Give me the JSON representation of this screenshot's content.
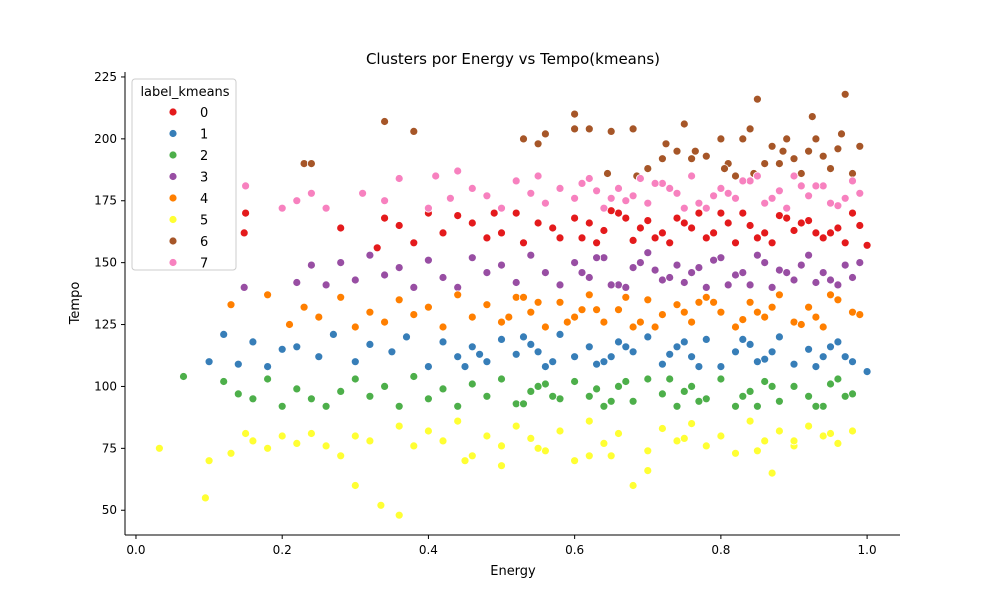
{
  "chart_data": {
    "type": "scatter",
    "title": "Clusters por Energy vs Tempo(kmeans)",
    "xlabel": "Energy",
    "ylabel": "Tempo",
    "xlim": [
      -0.015,
      1.045
    ],
    "ylim": [
      40,
      227
    ],
    "xticks": [
      0.0,
      0.2,
      0.4,
      0.6,
      0.8,
      1.0
    ],
    "xtick_labels": [
      "0.0",
      "0.2",
      "0.4",
      "0.6",
      "0.8",
      "1.0"
    ],
    "yticks": [
      50,
      75,
      100,
      125,
      150,
      175,
      200,
      225
    ],
    "ytick_labels": [
      "50",
      "75",
      "100",
      "125",
      "150",
      "175",
      "200",
      "225"
    ],
    "grid": false,
    "legend": {
      "title": "label_kmeans",
      "placement": "top-left",
      "entries": [
        "0",
        "1",
        "2",
        "3",
        "4",
        "5",
        "6",
        "7"
      ]
    },
    "series": [
      {
        "name": "0",
        "color": "#e41a1c",
        "x": [
          0.15,
          0.148,
          0.28,
          0.34,
          0.33,
          0.36,
          0.38,
          0.4,
          0.42,
          0.44,
          0.46,
          0.48,
          0.5,
          0.52,
          0.55,
          0.58,
          0.6,
          0.62,
          0.64,
          0.66,
          0.68,
          0.7,
          0.72,
          0.74,
          0.76,
          0.78,
          0.8,
          0.82,
          0.84,
          0.86,
          0.88,
          0.9,
          0.92,
          0.94,
          0.96,
          0.98,
          1.0,
          0.63,
          0.67,
          0.71,
          0.75,
          0.79,
          0.83,
          0.87,
          0.91,
          0.95,
          0.99,
          0.65,
          0.69,
          0.73,
          0.77,
          0.81,
          0.85,
          0.89,
          0.93,
          0.97,
          0.61,
          0.57,
          0.53,
          0.49
        ],
        "y": [
          170,
          162,
          164,
          168,
          156,
          165,
          158,
          170,
          162,
          169,
          166,
          160,
          162,
          170,
          166,
          160,
          168,
          166,
          163,
          170,
          159,
          167,
          162,
          168,
          164,
          160,
          170,
          158,
          165,
          162,
          169,
          163,
          167,
          160,
          164,
          170,
          157,
          158,
          168,
          160,
          166,
          162,
          170,
          158,
          166,
          162,
          165,
          171,
          164,
          158,
          170,
          166,
          160,
          168,
          162,
          158,
          160,
          164,
          158,
          170
        ]
      },
      {
        "name": "1",
        "color": "#377eb8",
        "x": [
          0.1,
          0.12,
          0.14,
          0.16,
          0.18,
          0.2,
          0.22,
          0.25,
          0.27,
          0.3,
          0.32,
          0.35,
          0.37,
          0.4,
          0.42,
          0.44,
          0.46,
          0.48,
          0.5,
          0.52,
          0.54,
          0.56,
          0.58,
          0.6,
          0.62,
          0.64,
          0.66,
          0.68,
          0.7,
          0.72,
          0.74,
          0.76,
          0.78,
          0.8,
          0.82,
          0.84,
          0.86,
          0.88,
          0.9,
          0.92,
          0.94,
          0.96,
          0.98,
          1.0,
          0.45,
          0.55,
          0.65,
          0.75,
          0.85,
          0.95,
          0.53,
          0.63,
          0.73,
          0.83,
          0.93,
          0.47,
          0.57,
          0.67,
          0.77,
          0.87,
          0.97
        ],
        "y": [
          110,
          121,
          109,
          118,
          108,
          115,
          116,
          112,
          121,
          110,
          117,
          114,
          120,
          108,
          118,
          112,
          116,
          110,
          119,
          113,
          117,
          108,
          121,
          112,
          116,
          110,
          118,
          114,
          120,
          109,
          116,
          112,
          119,
          108,
          114,
          117,
          111,
          120,
          109,
          115,
          112,
          118,
          110,
          106,
          108,
          114,
          112,
          118,
          110,
          116,
          120,
          109,
          113,
          119,
          108,
          113,
          110,
          116,
          108,
          114,
          112
        ]
      },
      {
        "name": "2",
        "color": "#4daf4a",
        "x": [
          0.065,
          0.12,
          0.14,
          0.16,
          0.18,
          0.2,
          0.22,
          0.24,
          0.26,
          0.28,
          0.3,
          0.32,
          0.34,
          0.36,
          0.38,
          0.4,
          0.42,
          0.44,
          0.46,
          0.48,
          0.5,
          0.52,
          0.54,
          0.56,
          0.58,
          0.6,
          0.62,
          0.64,
          0.66,
          0.68,
          0.7,
          0.72,
          0.74,
          0.76,
          0.78,
          0.8,
          0.82,
          0.84,
          0.86,
          0.88,
          0.9,
          0.92,
          0.94,
          0.96,
          0.98,
          0.55,
          0.65,
          0.75,
          0.85,
          0.95,
          0.57,
          0.67,
          0.77,
          0.87,
          0.97,
          0.53,
          0.63,
          0.73,
          0.83,
          0.93
        ],
        "y": [
          104,
          102,
          97,
          95,
          103,
          92,
          99,
          95,
          92,
          98,
          103,
          96,
          100,
          92,
          104,
          95,
          99,
          92,
          101,
          96,
          103,
          93,
          98,
          101,
          95,
          102,
          96,
          92,
          100,
          94,
          103,
          97,
          92,
          100,
          95,
          103,
          92,
          98,
          102,
          94,
          100,
          96,
          92,
          103,
          97,
          100,
          94,
          98,
          92,
          101,
          96,
          102,
          94,
          100,
          96,
          93,
          99,
          103,
          96,
          92
        ]
      },
      {
        "name": "3",
        "color": "#984ea3",
        "x": [
          0.148,
          0.22,
          0.24,
          0.26,
          0.28,
          0.3,
          0.32,
          0.34,
          0.36,
          0.38,
          0.4,
          0.42,
          0.44,
          0.46,
          0.48,
          0.5,
          0.52,
          0.54,
          0.56,
          0.58,
          0.6,
          0.62,
          0.64,
          0.66,
          0.68,
          0.7,
          0.72,
          0.74,
          0.76,
          0.78,
          0.8,
          0.82,
          0.84,
          0.86,
          0.88,
          0.9,
          0.92,
          0.94,
          0.96,
          0.98,
          0.63,
          0.67,
          0.71,
          0.75,
          0.79,
          0.83,
          0.87,
          0.91,
          0.95,
          0.99,
          0.61,
          0.65,
          0.69,
          0.73,
          0.77,
          0.81,
          0.85,
          0.89,
          0.93,
          0.97
        ],
        "y": [
          140,
          142,
          149,
          141,
          150,
          143,
          153,
          145,
          148,
          140,
          151,
          144,
          140,
          152,
          146,
          149,
          142,
          153,
          146,
          141,
          150,
          144,
          152,
          141,
          148,
          154,
          143,
          149,
          146,
          140,
          152,
          145,
          141,
          150,
          147,
          143,
          153,
          146,
          141,
          144,
          152,
          140,
          147,
          142,
          151,
          146,
          140,
          149,
          143,
          150,
          146,
          141,
          150,
          144,
          148,
          141,
          153,
          146,
          142,
          149
        ]
      },
      {
        "name": "4",
        "color": "#ff7f00",
        "x": [
          0.13,
          0.18,
          0.21,
          0.23,
          0.25,
          0.28,
          0.3,
          0.32,
          0.34,
          0.36,
          0.38,
          0.4,
          0.42,
          0.44,
          0.46,
          0.48,
          0.5,
          0.52,
          0.54,
          0.56,
          0.58,
          0.6,
          0.62,
          0.64,
          0.66,
          0.68,
          0.7,
          0.72,
          0.74,
          0.76,
          0.78,
          0.8,
          0.82,
          0.84,
          0.86,
          0.88,
          0.9,
          0.92,
          0.94,
          0.96,
          0.98,
          0.51,
          0.55,
          0.59,
          0.63,
          0.67,
          0.71,
          0.75,
          0.79,
          0.83,
          0.87,
          0.91,
          0.95,
          0.99,
          0.53,
          0.61,
          0.69,
          0.77,
          0.85,
          0.93
        ],
        "y": [
          133,
          137,
          125,
          132,
          128,
          136,
          124,
          130,
          126,
          135,
          129,
          132,
          124,
          137,
          128,
          133,
          126,
          136,
          130,
          124,
          134,
          128,
          137,
          126,
          131,
          124,
          135,
          129,
          133,
          126,
          136,
          130,
          124,
          134,
          128,
          137,
          126,
          132,
          124,
          135,
          130,
          128,
          134,
          126,
          131,
          136,
          124,
          130,
          134,
          127,
          132,
          125,
          137,
          129,
          136,
          131,
          126,
          134,
          130,
          128
        ]
      },
      {
        "name": "5",
        "color": "#ffff33",
        "x": [
          0.032,
          0.095,
          0.1,
          0.13,
          0.15,
          0.16,
          0.18,
          0.2,
          0.22,
          0.24,
          0.26,
          0.28,
          0.3,
          0.3,
          0.32,
          0.335,
          0.36,
          0.36,
          0.38,
          0.4,
          0.42,
          0.44,
          0.46,
          0.48,
          0.5,
          0.52,
          0.54,
          0.56,
          0.58,
          0.6,
          0.62,
          0.64,
          0.66,
          0.68,
          0.7,
          0.72,
          0.74,
          0.76,
          0.78,
          0.8,
          0.82,
          0.84,
          0.86,
          0.88,
          0.9,
          0.92,
          0.94,
          0.96,
          0.98,
          0.87,
          0.45,
          0.55,
          0.65,
          0.75,
          0.85,
          0.95,
          0.5,
          0.7,
          0.9,
          0.62
        ],
        "y": [
          75,
          55,
          70,
          73,
          81,
          78,
          75,
          80,
          77,
          81,
          76,
          72,
          60,
          80,
          78,
          52,
          48,
          84,
          76,
          82,
          78,
          86,
          72,
          80,
          76,
          84,
          79,
          74,
          82,
          70,
          86,
          77,
          81,
          60,
          74,
          83,
          78,
          85,
          76,
          80,
          73,
          86,
          78,
          82,
          76,
          84,
          80,
          77,
          82,
          65,
          70,
          75,
          72,
          79,
          74,
          81,
          68,
          66,
          78,
          72
        ]
      },
      {
        "name": "6",
        "color": "#a65628",
        "x": [
          0.34,
          0.38,
          0.23,
          0.24,
          0.53,
          0.55,
          0.56,
          0.6,
          0.6,
          0.62,
          0.65,
          0.68,
          0.7,
          0.72,
          0.74,
          0.75,
          0.76,
          0.78,
          0.8,
          0.81,
          0.82,
          0.83,
          0.84,
          0.85,
          0.86,
          0.87,
          0.88,
          0.89,
          0.9,
          0.91,
          0.92,
          0.93,
          0.94,
          0.95,
          0.96,
          0.97,
          0.98,
          0.99,
          0.925,
          0.965,
          0.885,
          0.845,
          0.805,
          0.765,
          0.725,
          0.685,
          0.645
        ],
        "y": [
          207,
          203,
          190,
          190,
          200,
          198,
          202,
          210,
          204,
          204,
          203,
          204,
          188,
          192,
          195,
          206,
          192,
          193,
          200,
          190,
          185,
          200,
          204,
          216,
          190,
          197,
          190,
          200,
          192,
          186,
          195,
          200,
          193,
          188,
          196,
          218,
          186,
          197,
          209,
          202,
          195,
          186,
          188,
          195,
          198,
          185,
          186
        ]
      },
      {
        "name": "7",
        "color": "#f781bf",
        "x": [
          0.15,
          0.2,
          0.22,
          0.24,
          0.26,
          0.31,
          0.34,
          0.36,
          0.4,
          0.41,
          0.43,
          0.44,
          0.46,
          0.48,
          0.5,
          0.52,
          0.54,
          0.55,
          0.56,
          0.58,
          0.6,
          0.62,
          0.64,
          0.66,
          0.68,
          0.7,
          0.72,
          0.74,
          0.76,
          0.78,
          0.8,
          0.82,
          0.84,
          0.86,
          0.88,
          0.9,
          0.92,
          0.94,
          0.96,
          0.98,
          0.63,
          0.67,
          0.71,
          0.75,
          0.79,
          0.83,
          0.87,
          0.91,
          0.95,
          0.99,
          0.61,
          0.65,
          0.69,
          0.73,
          0.77,
          0.81,
          0.85,
          0.89,
          0.93,
          0.97
        ],
        "y": [
          181,
          172,
          175,
          178,
          172,
          178,
          175,
          184,
          172,
          185,
          176,
          187,
          180,
          177,
          172,
          183,
          178,
          185,
          174,
          180,
          176,
          184,
          172,
          180,
          177,
          174,
          182,
          178,
          185,
          172,
          180,
          176,
          183,
          174,
          179,
          185,
          177,
          181,
          173,
          183,
          179,
          175,
          182,
          172,
          177,
          183,
          176,
          181,
          174,
          178,
          182,
          176,
          184,
          180,
          174,
          178,
          185,
          172,
          181,
          176
        ]
      }
    ]
  }
}
